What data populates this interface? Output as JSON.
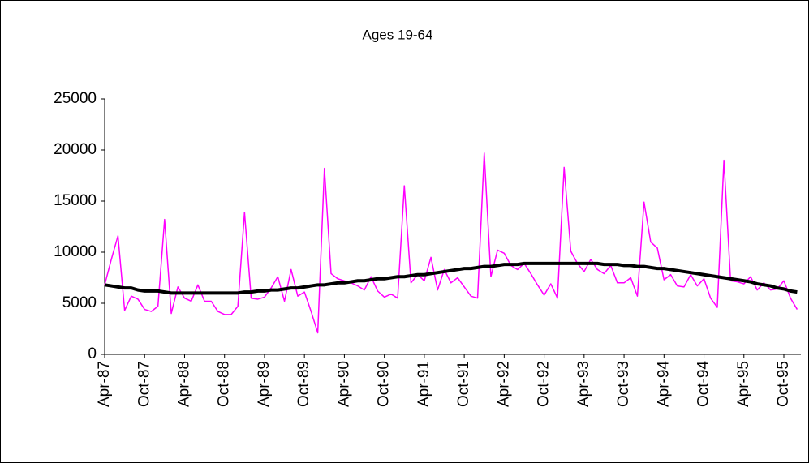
{
  "chart_data": {
    "type": "line",
    "title": "Ages 19-64",
    "categories": [
      "Apr-87",
      null,
      null,
      null,
      null,
      null,
      "Oct-87",
      null,
      null,
      null,
      null,
      null,
      "Apr-88",
      null,
      null,
      null,
      null,
      null,
      "Oct-88",
      null,
      null,
      null,
      null,
      null,
      "Apr-89",
      null,
      null,
      null,
      null,
      null,
      "Oct-89",
      null,
      null,
      null,
      null,
      null,
      "Apr-90",
      null,
      null,
      null,
      null,
      null,
      "Oct-90",
      null,
      null,
      null,
      null,
      null,
      "Apr-91",
      null,
      null,
      null,
      null,
      null,
      "Oct-91",
      null,
      null,
      null,
      null,
      null,
      "Apr-92",
      null,
      null,
      null,
      null,
      null,
      "Oct-92",
      null,
      null,
      null,
      null,
      null,
      "Apr-93",
      null,
      null,
      null,
      null,
      null,
      "Oct-93",
      null,
      null,
      null,
      null,
      null,
      "Apr-94",
      null,
      null,
      null,
      null,
      null,
      "Oct-94",
      null,
      null,
      null,
      null,
      null,
      "Apr-95",
      null,
      null,
      null,
      null,
      null,
      "Oct-95",
      null,
      null
    ],
    "series": [
      {
        "color": "#ff00ff",
        "width": 1.5,
        "values": [
          6800,
          9300,
          11600,
          4300,
          5700,
          5400,
          4400,
          4200,
          4700,
          13200,
          4000,
          6600,
          5500,
          5200,
          6800,
          5200,
          5200,
          4200,
          3900,
          3900,
          4700,
          13900,
          5500,
          5400,
          5600,
          6500,
          7600,
          5200,
          8300,
          5700,
          6100,
          4200,
          2100,
          18200,
          7900,
          7400,
          7200,
          7000,
          6700,
          6300,
          7600,
          6200,
          5600,
          5900,
          5500,
          16500,
          7000,
          7800,
          7200,
          9500,
          6300,
          8300,
          7000,
          7500,
          6600,
          5700,
          5500,
          19700,
          7600,
          10200,
          9900,
          8700,
          8300,
          8900,
          7900,
          6800,
          5800,
          6900,
          5500,
          18300,
          10100,
          8900,
          8100,
          9300,
          8300,
          7900,
          8700,
          7000,
          7000,
          7500,
          5700,
          14900,
          11000,
          10400,
          7300,
          7800,
          6700,
          6600,
          7800,
          6700,
          7400,
          5500,
          4600,
          19000,
          7200,
          7100,
          6900,
          7600,
          6300,
          7000,
          6300,
          6400,
          7200,
          5500,
          4400
        ]
      },
      {
        "color": "#000000",
        "width": 4,
        "values": [
          6800,
          6700,
          6600,
          6500,
          6500,
          6300,
          6200,
          6200,
          6200,
          6100,
          6000,
          6000,
          6000,
          6000,
          6000,
          6000,
          6000,
          6000,
          6000,
          6000,
          6000,
          6100,
          6100,
          6200,
          6200,
          6300,
          6300,
          6400,
          6500,
          6500,
          6600,
          6700,
          6800,
          6800,
          6900,
          7000,
          7000,
          7100,
          7200,
          7200,
          7300,
          7400,
          7400,
          7500,
          7600,
          7600,
          7700,
          7800,
          7800,
          7900,
          8000,
          8100,
          8200,
          8300,
          8400,
          8400,
          8500,
          8600,
          8600,
          8700,
          8800,
          8800,
          8800,
          8900,
          8900,
          8900,
          8900,
          8900,
          8900,
          8900,
          8900,
          8900,
          8900,
          8900,
          8900,
          8800,
          8800,
          8800,
          8700,
          8700,
          8600,
          8600,
          8500,
          8400,
          8400,
          8300,
          8200,
          8100,
          8000,
          7900,
          7800,
          7700,
          7600,
          7500,
          7400,
          7300,
          7200,
          7100,
          6900,
          6800,
          6700,
          6500,
          6400,
          6200,
          6100
        ]
      }
    ],
    "ylim": [
      0,
      25000
    ],
    "yticks": [
      0,
      5000,
      10000,
      15000,
      20000,
      25000
    ],
    "grid": false
  }
}
